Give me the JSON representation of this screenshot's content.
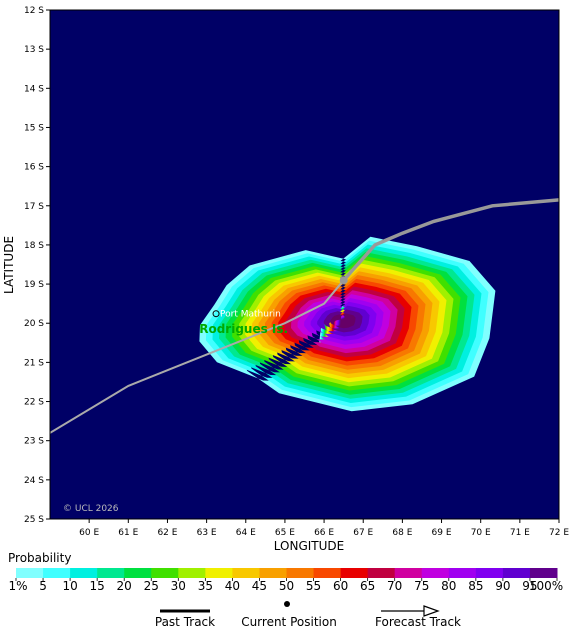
{
  "map": {
    "xlabel": "LONGITUDE",
    "ylabel": "LATITUDE",
    "copyright": "© UCL 2026",
    "background_color": "#000066",
    "lat_ticks": [
      "12 S",
      "13 S",
      "14 S",
      "15 S",
      "16 S",
      "17 S",
      "18 S",
      "19 S",
      "20 S",
      "21 S",
      "22 S",
      "23 S",
      "24 S",
      "25 S"
    ],
    "lon_ticks": [
      "60 E",
      "61 E",
      "62 E",
      "63 E",
      "64 E",
      "65 E",
      "66 E",
      "67 E",
      "68 E",
      "69 E",
      "70 E",
      "71 E",
      "72 E"
    ],
    "places": [
      {
        "name": "Port Mathurin",
        "lon": 63.42,
        "lat": -19.68
      },
      {
        "name": "Rodrigues Is.",
        "lon": 63.45,
        "lat": -20.05
      }
    ],
    "track": {
      "past_and_forecast": [
        [
          59.0,
          -22.8
        ],
        [
          61.0,
          -21.6
        ],
        [
          62.0,
          -21.2
        ],
        [
          63.0,
          -20.8
        ],
        [
          64.0,
          -20.4
        ],
        [
          65.0,
          -20.0
        ],
        [
          66.0,
          -19.5
        ],
        [
          66.5,
          -18.9
        ],
        [
          67.3,
          -18.0
        ],
        [
          68.0,
          -17.7
        ],
        [
          68.8,
          -17.4
        ],
        [
          70.3,
          -17.0
        ],
        [
          72.0,
          -16.85
        ]
      ],
      "current_position": [
        66.5,
        -18.9
      ]
    }
  },
  "legend": {
    "title": "Probability",
    "labels": [
      "1%",
      "5",
      "10",
      "15",
      "20",
      "25",
      "30",
      "35",
      "40",
      "45",
      "50",
      "55",
      "60",
      "65",
      "70",
      "75",
      "80",
      "85",
      "90",
      "95",
      "100%"
    ],
    "colors": [
      "#80ffff",
      "#40ffff",
      "#00f0e0",
      "#00e890",
      "#00e040",
      "#40e000",
      "#a0f000",
      "#f0f000",
      "#f8c800",
      "#f8a000",
      "#f87800",
      "#f84800",
      "#e80000",
      "#c00040",
      "#d000a0",
      "#c000e0",
      "#a000f0",
      "#8000f0",
      "#6000d0",
      "#60008c",
      "#660066"
    ],
    "track_keys": [
      "Past Track",
      "Current Position",
      "Forecast Track"
    ]
  }
}
